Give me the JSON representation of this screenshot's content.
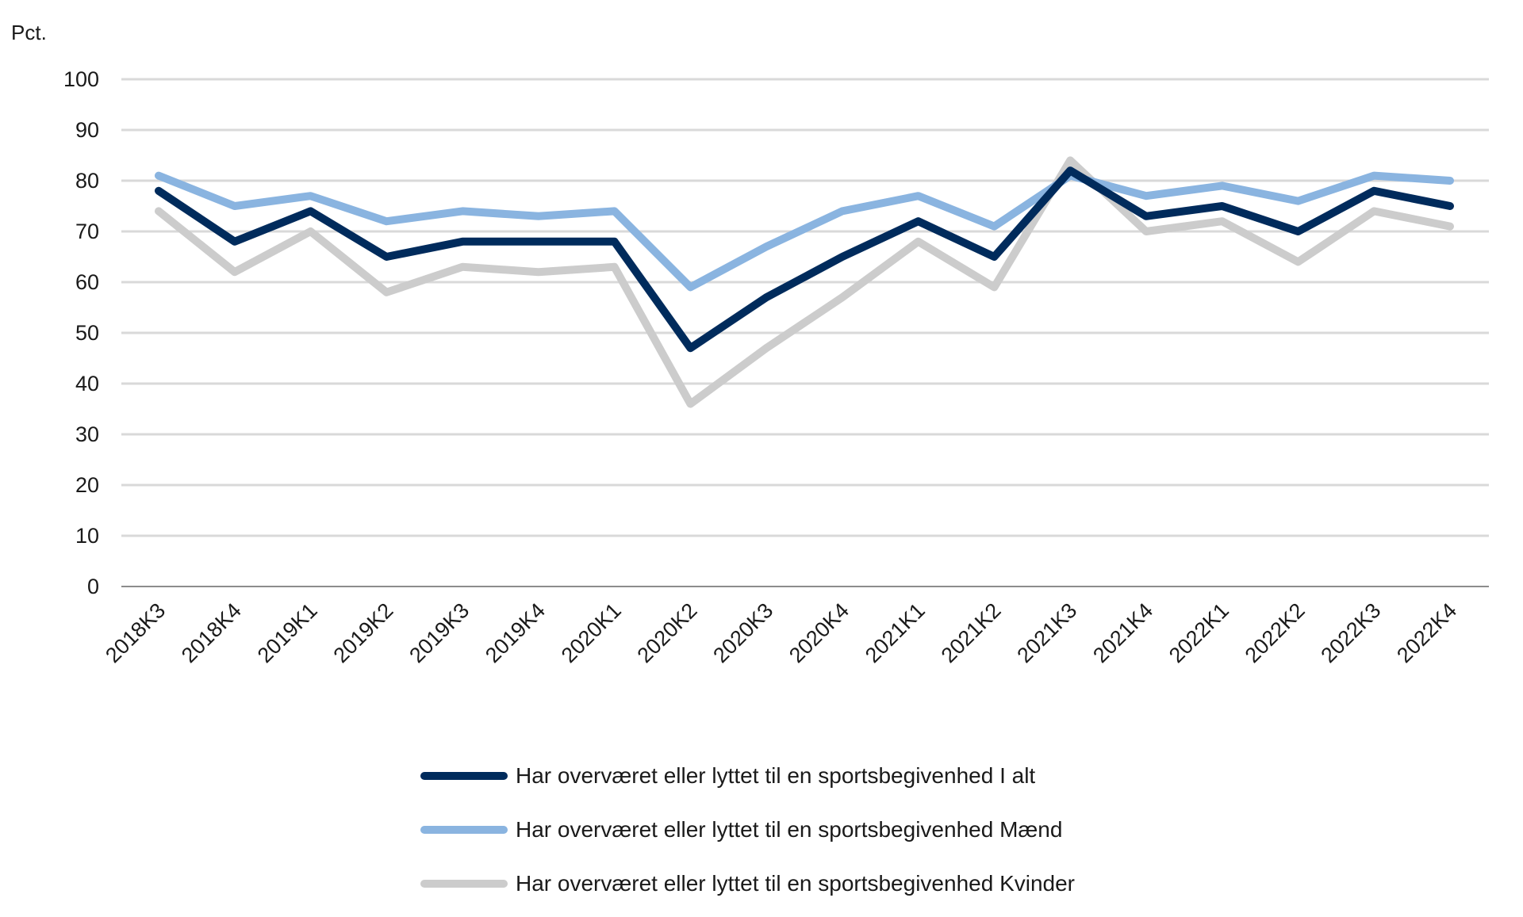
{
  "chart_data": {
    "type": "line",
    "ylabel": "Pct.",
    "xlabel": "",
    "ylim": [
      0,
      100
    ],
    "yticks": [
      0,
      10,
      20,
      30,
      40,
      50,
      60,
      70,
      80,
      90,
      100
    ],
    "grid": true,
    "legend_position": "bottom",
    "categories": [
      "2018K3",
      "2018K4",
      "2019K1",
      "2019K2",
      "2019K3",
      "2019K4",
      "2020K1",
      "2020K2",
      "2020K3",
      "2020K4",
      "2021K1",
      "2021K2",
      "2021K3",
      "2021K4",
      "2022K1",
      "2022K2",
      "2022K3",
      "2022K4"
    ],
    "series": [
      {
        "name": "Har overværet eller lyttet til en sportsbegivenhed I alt",
        "color": "#002b5c",
        "values": [
          78,
          68,
          74,
          65,
          68,
          68,
          68,
          47,
          57,
          65,
          72,
          65,
          82,
          73,
          75,
          70,
          78,
          75
        ]
      },
      {
        "name": "Har overværet eller lyttet til en sportsbegivenhed Mænd",
        "color": "#8ab4e0",
        "values": [
          81,
          75,
          77,
          72,
          74,
          73,
          74,
          59,
          67,
          74,
          77,
          71,
          81,
          77,
          79,
          76,
          81,
          80
        ]
      },
      {
        "name": "Har overværet eller lyttet til en sportsbegivenhed Kvinder",
        "color": "#cccccc",
        "values": [
          74,
          62,
          70,
          58,
          63,
          62,
          63,
          36,
          47,
          57,
          68,
          59,
          84,
          70,
          72,
          64,
          74,
          71
        ]
      }
    ]
  }
}
